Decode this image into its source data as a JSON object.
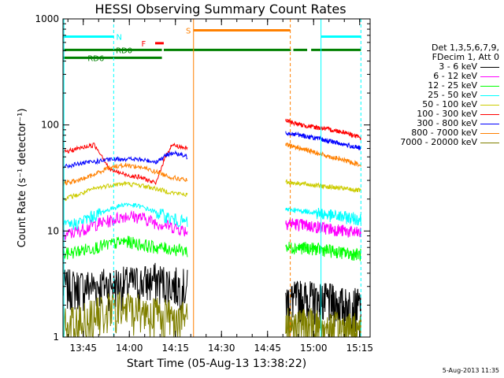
{
  "chart_data": {
    "type": "line",
    "title": "HESSI Observing Summary Count Rates",
    "xlabel": "Start Time (05-Aug-13 13:38:22)",
    "ylabel": "Count Rate (s⁻¹ detector⁻¹)",
    "x_unit": "minutes since 13:38:22",
    "xlim": [
      0,
      100
    ],
    "ylim": [
      1,
      1000
    ],
    "y_scale": "log",
    "x_ticks": [
      {
        "label": "13:45",
        "value": 6.6
      },
      {
        "label": "14:00",
        "value": 21.6
      },
      {
        "label": "14:15",
        "value": 36.6
      },
      {
        "label": "14:30",
        "value": 51.6
      },
      {
        "label": "14:45",
        "value": 66.6
      },
      {
        "label": "15:00",
        "value": 81.6
      },
      {
        "label": "15:15",
        "value": 96.6
      }
    ],
    "y_ticks": [
      {
        "label": "1",
        "value": 1
      },
      {
        "label": "10",
        "value": 10
      },
      {
        "label": "100",
        "value": 100
      },
      {
        "label": "1000",
        "value": 1000
      }
    ],
    "legend_header": [
      "Det 1,3,5,6,7,9,",
      "FDecim 1, Att 0"
    ],
    "legend_position": "right",
    "series": [
      {
        "name": "3 - 6 keV",
        "color": "#000000",
        "pre": [
          3,
          3,
          3.1,
          3.2,
          3.2,
          3.3,
          3.5,
          3.2,
          3.0
        ],
        "post": [
          2.2,
          2.4,
          2.3,
          2.2,
          2.0,
          2.0
        ]
      },
      {
        "name": "6 - 12 keV",
        "color": "#ff00ff",
        "pre": [
          9,
          10,
          11.5,
          12.5,
          14,
          13.5,
          12,
          11,
          10
        ],
        "post": [
          12,
          11.5,
          11,
          10.5,
          10,
          9.5
        ]
      },
      {
        "name": "12 - 25 keV",
        "color": "#00ff00",
        "pre": [
          6,
          6.5,
          7,
          7.5,
          8,
          7.5,
          7,
          6.8,
          6.5
        ],
        "post": [
          7,
          7,
          6.8,
          6.5,
          6.2,
          6
        ]
      },
      {
        "name": "25 - 50 keV",
        "color": "#00ffff",
        "pre": [
          11,
          12,
          14,
          16,
          18,
          17,
          15,
          13,
          12
        ],
        "post": [
          16,
          15.5,
          15,
          14,
          13.5,
          13
        ]
      },
      {
        "name": "50 - 100 keV",
        "color": "#cccc00",
        "pre": [
          20,
          22,
          25,
          27,
          28,
          27,
          25,
          23,
          22
        ],
        "post": [
          29,
          28,
          27,
          26,
          25,
          24
        ]
      },
      {
        "name": "100 - 300 keV",
        "color": "#ff0000",
        "pre": [
          55,
          60,
          65,
          38,
          34,
          32,
          28,
          65,
          60
        ],
        "post": [
          110,
          100,
          95,
          90,
          85,
          75
        ]
      },
      {
        "name": "300 - 800 keV",
        "color": "#0000ff",
        "pre": [
          40,
          43,
          45,
          47,
          48,
          47,
          45,
          55,
          50
        ],
        "post": [
          85,
          80,
          75,
          70,
          65,
          60
        ]
      },
      {
        "name": "800 - 7000 keV",
        "color": "#ff8000",
        "pre": [
          28,
          30,
          34,
          40,
          42,
          40,
          36,
          32,
          30
        ],
        "post": [
          65,
          60,
          55,
          50,
          46,
          42
        ]
      },
      {
        "name": "7000 - 20000 keV",
        "color": "#808000",
        "pre": [
          1.3,
          1.4,
          1.6,
          1.8,
          1.9,
          1.8,
          1.7,
          1.6,
          1.5
        ],
        "post": [
          1.3,
          1.3,
          1.3,
          1.2,
          1.2,
          1.2
        ]
      }
    ],
    "pre_range": [
      0,
      40.5
    ],
    "post_range": [
      72.5,
      97
    ],
    "flags": [
      {
        "label": "N",
        "color": "#00ffff",
        "level": 680,
        "segments": [
          [
            0,
            16.5
          ],
          [
            84,
            97
          ]
        ],
        "label_x": 17.3
      },
      {
        "label": "F",
        "color": "#ff0000",
        "level": 590,
        "segments": [
          [
            30,
            32.8
          ]
        ],
        "label_x": 25.5
      },
      {
        "label": "S",
        "color": "#ff8000",
        "level": 780,
        "segments": [
          [
            42.5,
            74
          ]
        ],
        "label_x": 40
      },
      {
        "label": "RD0",
        "color": "#008000",
        "level": 510,
        "segments": [
          [
            0,
            32.2
          ],
          [
            32.8,
            74.2
          ],
          [
            75,
            79.5
          ],
          [
            80.8,
            97
          ]
        ],
        "label_x": 17.2
      },
      {
        "label": "RD6",
        "color": "#008000",
        "level": 430,
        "segments": [
          [
            0,
            32.2
          ]
        ],
        "label_x": 8
      }
    ],
    "vlines": [
      {
        "x": 0.3,
        "color": "#00ffff",
        "style": "solid"
      },
      {
        "x": 16.5,
        "color": "#00ffff",
        "style": "dashed"
      },
      {
        "x": 42.5,
        "color": "#ff8000",
        "style": "solid"
      },
      {
        "x": 74,
        "color": "#ff8000",
        "style": "dashed"
      },
      {
        "x": 84,
        "color": "#00ffff",
        "style": "solid"
      },
      {
        "x": 97,
        "color": "#00ffff",
        "style": "dashed"
      }
    ]
  },
  "footer_stamp": "5-Aug-2013 11:35"
}
